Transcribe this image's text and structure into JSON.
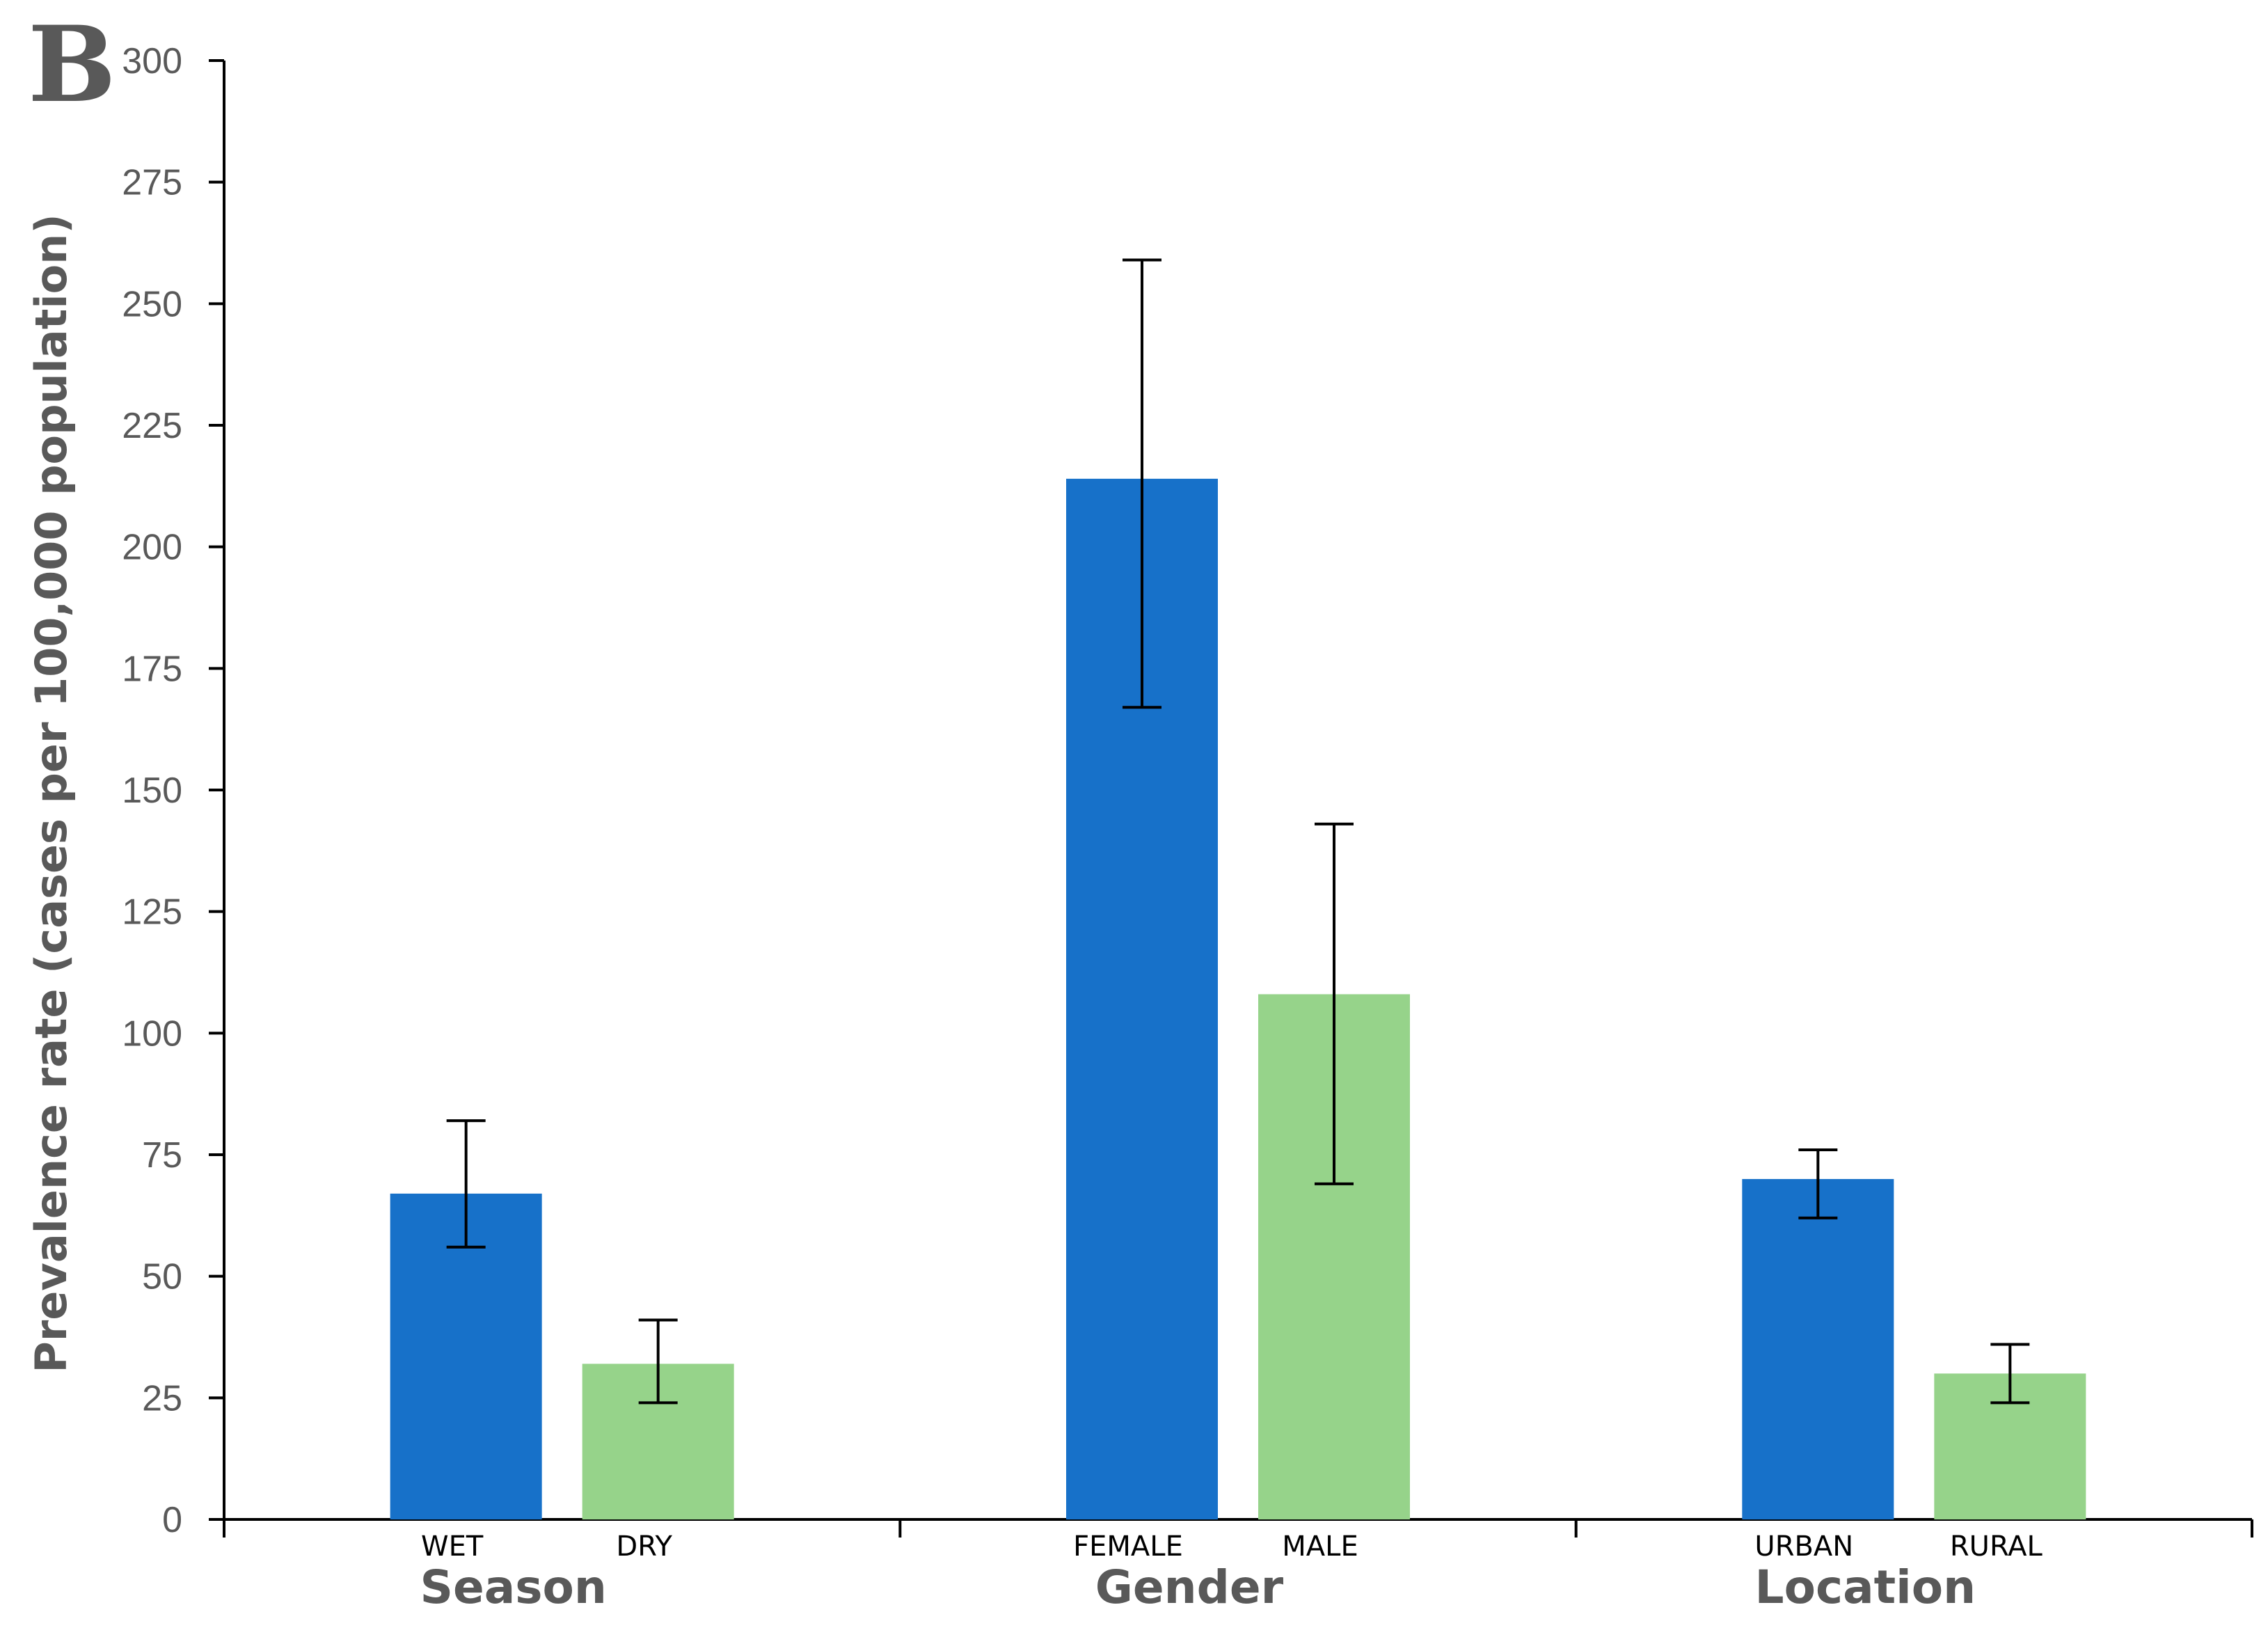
{
  "panel_label": "B",
  "chart_data": {
    "type": "bar",
    "title": "",
    "xlabel": "",
    "ylabel": "Prevalence rate (cases per 100,000 population)",
    "ylim": [
      0,
      300
    ],
    "yticks": [
      "0",
      "25",
      "50",
      "75",
      "100",
      "125",
      "150",
      "175",
      "200",
      "225",
      "250",
      "275",
      "300"
    ],
    "grid": false,
    "legend": "none",
    "colors": {
      "first": "#1771C9",
      "second": "#96D38A",
      "axis": "#000000",
      "text": "#595959"
    },
    "groups": [
      {
        "label": "Season",
        "bars": [
          {
            "category": "WET",
            "value": 67,
            "error_low": 56,
            "error_high": 82,
            "color": "#1771C9"
          },
          {
            "category": "DRY",
            "value": 32,
            "error_low": 24,
            "error_high": 41,
            "color": "#96D38A"
          }
        ]
      },
      {
        "label": "Gender",
        "bars": [
          {
            "category": "FEMALE",
            "value": 214,
            "error_low": 167,
            "error_high": 259,
            "color": "#1771C9"
          },
          {
            "category": "MALE",
            "value": 108,
            "error_low": 69,
            "error_high": 143,
            "color": "#96D38A"
          }
        ]
      },
      {
        "label": "Location",
        "bars": [
          {
            "category": "URBAN",
            "value": 70,
            "error_low": 62,
            "error_high": 76,
            "color": "#1771C9"
          },
          {
            "category": "RURAL",
            "value": 30,
            "error_low": 24,
            "error_high": 36,
            "color": "#96D38A"
          }
        ]
      }
    ]
  }
}
